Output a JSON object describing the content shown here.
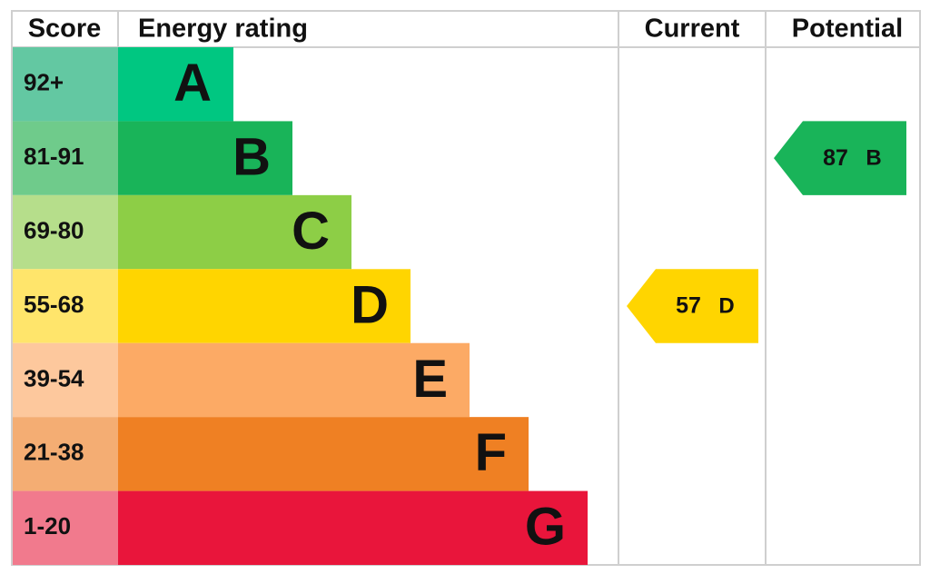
{
  "chart_data": {
    "type": "epc",
    "headers": {
      "score": "Score",
      "rating": "Energy rating",
      "current": "Current",
      "potential": "Potential"
    },
    "bands": [
      {
        "score": "92+",
        "letter": "A",
        "color": "#00c781",
        "score_color": "#63c8a2"
      },
      {
        "score": "81-91",
        "letter": "B",
        "color": "#19b459",
        "score_color": "#6fcb8b"
      },
      {
        "score": "69-80",
        "letter": "C",
        "color": "#8dce46",
        "score_color": "#b6de8b"
      },
      {
        "score": "55-68",
        "letter": "D",
        "color": "#ffd500",
        "score_color": "#ffe56b"
      },
      {
        "score": "39-54",
        "letter": "E",
        "color": "#fcaa65",
        "score_color": "#fdc89d"
      },
      {
        "score": "21-38",
        "letter": "F",
        "color": "#ef8023",
        "score_color": "#f4ad73"
      },
      {
        "score": "1-20",
        "letter": "G",
        "color": "#e9153b",
        "score_color": "#f17a8d"
      }
    ],
    "current": {
      "value": 57,
      "letter": "D",
      "color": "#ffd500"
    },
    "potential": {
      "value": 87,
      "letter": "B",
      "color": "#19b459"
    }
  }
}
